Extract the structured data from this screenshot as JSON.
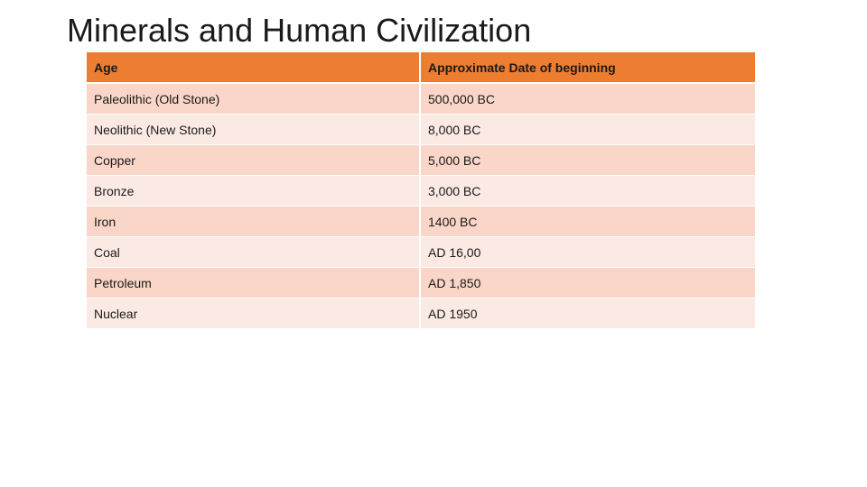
{
  "slide": {
    "title": "Minerals and Human Civilization"
  },
  "table": {
    "headers": [
      "Age",
      "Approximate Date of beginning"
    ],
    "rows": [
      [
        "Paleolithic (Old Stone)",
        "500,000 BC"
      ],
      [
        "Neolithic (New Stone)",
        "8,000 BC"
      ],
      [
        "Copper",
        "5,000 BC"
      ],
      [
        "Bronze",
        "3,000 BC"
      ],
      [
        "Iron",
        "1400 BC"
      ],
      [
        "Coal",
        "AD 16,00"
      ],
      [
        "Petroleum",
        "AD 1,850"
      ],
      [
        "Nuclear",
        "AD 1950"
      ]
    ]
  },
  "colors": {
    "header_bg": "#ed7d31",
    "row_odd_bg": "#f9d6c7",
    "row_even_bg": "#fbeae4"
  }
}
